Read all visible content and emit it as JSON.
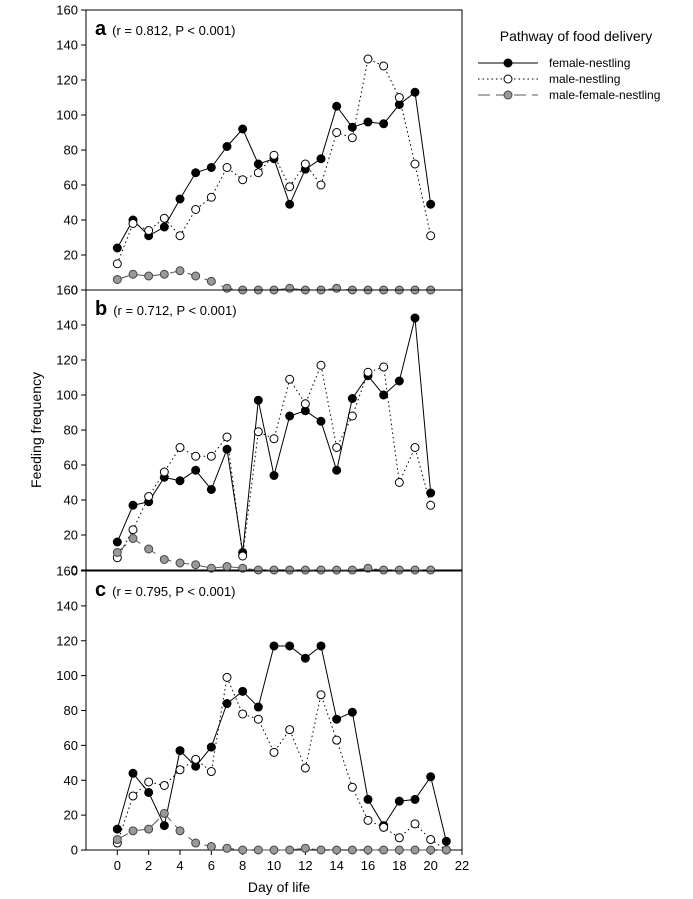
{
  "figure": {
    "ylabel": "Feeding frequency",
    "xlabel": "Day of life",
    "legend_title": "Pathway of food delivery",
    "legend_entries": [
      "female-nestling",
      "male-nestling",
      "male-female-nestling"
    ]
  },
  "chart_data": [
    {
      "type": "line",
      "panel_letter": "a",
      "annotation": "(r = 0.812, P < 0.001)",
      "ylim": [
        0,
        160
      ],
      "xlim": [
        -2,
        22
      ],
      "yticks": [
        0,
        20,
        40,
        60,
        80,
        100,
        120,
        140,
        160
      ],
      "xticks": [],
      "x": [
        0,
        1,
        2,
        3,
        4,
        5,
        6,
        7,
        8,
        9,
        10,
        11,
        12,
        13,
        14,
        15,
        16,
        17,
        18,
        19,
        20
      ],
      "series": [
        {
          "name": "female-nestling",
          "values": [
            24,
            40,
            31,
            36,
            52,
            67,
            70,
            82,
            92,
            72,
            75,
            49,
            69,
            75,
            105,
            93,
            96,
            95,
            106,
            113,
            49
          ]
        },
        {
          "name": "male-nestling",
          "values": [
            15,
            38,
            34,
            41,
            31,
            46,
            53,
            70,
            63,
            67,
            77,
            59,
            72,
            60,
            90,
            87,
            132,
            128,
            110,
            72,
            31
          ]
        },
        {
          "name": "male-female-nestling",
          "values": [
            6,
            9,
            8,
            9,
            11,
            8,
            5,
            1,
            0,
            0,
            0,
            1,
            0,
            0,
            1,
            0,
            0,
            0,
            0,
            0,
            0
          ]
        }
      ]
    },
    {
      "type": "line",
      "panel_letter": "b",
      "annotation": "(r = 0.712, P < 0.001)",
      "ylim": [
        0,
        160
      ],
      "xlim": [
        -2,
        22
      ],
      "yticks": [
        0,
        20,
        40,
        60,
        80,
        100,
        120,
        140,
        160
      ],
      "xticks": [],
      "x": [
        0,
        1,
        2,
        3,
        4,
        5,
        6,
        7,
        8,
        9,
        10,
        11,
        12,
        13,
        14,
        15,
        16,
        17,
        18,
        19,
        20
      ],
      "series": [
        {
          "name": "female-nestling",
          "values": [
            16,
            37,
            39,
            53,
            51,
            57,
            46,
            69,
            10,
            97,
            54,
            88,
            91,
            85,
            57,
            98,
            111,
            100,
            108,
            144,
            44
          ]
        },
        {
          "name": "male-nestling",
          "values": [
            7,
            23,
            42,
            56,
            70,
            65,
            65,
            76,
            8,
            79,
            75,
            109,
            95,
            117,
            70,
            88,
            113,
            116,
            50,
            70,
            37
          ]
        },
        {
          "name": "male-female-nestling",
          "values": [
            10,
            18,
            12,
            6,
            4,
            3,
            1,
            2,
            1,
            0,
            0,
            0,
            0,
            0,
            0,
            0,
            1,
            0,
            0,
            0,
            0
          ]
        }
      ]
    },
    {
      "type": "line",
      "panel_letter": "c",
      "annotation": "(r = 0.795, P < 0.001)",
      "ylim": [
        0,
        160
      ],
      "xlim": [
        -2,
        22
      ],
      "yticks": [
        0,
        20,
        40,
        60,
        80,
        100,
        120,
        140,
        160
      ],
      "xticks": [
        0,
        2,
        4,
        6,
        8,
        10,
        12,
        14,
        16,
        18,
        20,
        22
      ],
      "x": [
        0,
        1,
        2,
        3,
        4,
        5,
        6,
        7,
        8,
        9,
        10,
        11,
        12,
        13,
        14,
        15,
        16,
        17,
        18,
        19,
        20,
        21
      ],
      "series": [
        {
          "name": "female-nestling",
          "values": [
            12,
            44,
            33,
            14,
            57,
            48,
            59,
            84,
            91,
            82,
            117,
            117,
            110,
            117,
            75,
            79,
            29,
            14,
            28,
            29,
            42,
            5
          ]
        },
        {
          "name": "male-nestling",
          "values": [
            4,
            31,
            39,
            37,
            46,
            52,
            45,
            99,
            78,
            75,
            56,
            69,
            47,
            89,
            63,
            36,
            17,
            13,
            7,
            15,
            6,
            0
          ]
        },
        {
          "name": "male-female-nestling",
          "values": [
            6,
            11,
            12,
            21,
            11,
            4,
            2,
            1,
            0,
            0,
            0,
            0,
            1,
            0,
            0,
            0,
            0,
            0,
            0,
            0,
            0,
            0
          ]
        }
      ]
    }
  ]
}
